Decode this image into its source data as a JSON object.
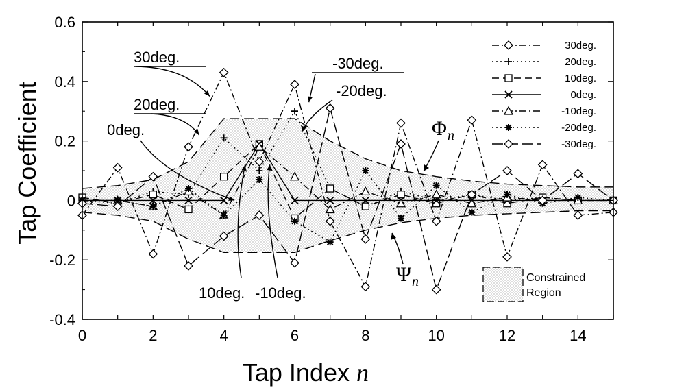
{
  "chart_data": {
    "type": "line",
    "xlabel": "Tap Index",
    "xlabel_var": "n",
    "ylabel": "Tap Coefficient",
    "xlim": [
      0,
      15
    ],
    "ylim": [
      -0.4,
      0.6
    ],
    "x_ticks": [
      0,
      2,
      4,
      6,
      8,
      10,
      12,
      14
    ],
    "y_ticks": [
      -0.4,
      -0.2,
      0,
      0.2,
      0.4,
      0.6
    ],
    "y_tick_labels": [
      "-0.4",
      "-0.2",
      "0",
      "0.2",
      "0.4",
      "0.6"
    ],
    "grid": false,
    "legend_position": "top-right",
    "x": [
      0,
      1,
      2,
      3,
      4,
      5,
      6,
      7,
      8,
      9,
      10,
      11,
      12,
      13,
      14,
      15
    ],
    "series": [
      {
        "name": "30deg.",
        "dash": "dashdot",
        "marker": "diamond",
        "values": [
          -0.05,
          0.11,
          -0.18,
          0.18,
          0.43,
          0.13,
          0.39,
          -0.07,
          -0.29,
          0.26,
          -0.07,
          0.27,
          -0.19,
          0.12,
          -0.05,
          -0.04
        ]
      },
      {
        "name": "20deg.",
        "dash": "dotted",
        "marker": "plus",
        "values": [
          0.0,
          -0.01,
          0.03,
          0.02,
          0.21,
          0.1,
          0.3,
          0.04,
          -0.02,
          0.03,
          0.0,
          0.02,
          0.0,
          0.01,
          0.0,
          0.0
        ]
      },
      {
        "name": "10deg.",
        "dash": "dashed",
        "marker": "square",
        "values": [
          0.01,
          -0.01,
          0.02,
          -0.03,
          0.08,
          0.19,
          -0.06,
          0.04,
          -0.02,
          0.02,
          -0.01,
          0.02,
          -0.01,
          0.01,
          0.0,
          0.0
        ]
      },
      {
        "name": "0deg.",
        "dash": "solid",
        "marker": "x",
        "values": [
          0,
          0,
          0,
          0,
          0,
          0.19,
          0,
          0,
          0,
          0,
          0,
          0,
          0,
          0,
          0,
          0
        ]
      },
      {
        "name": "-10deg.",
        "dash": "dashdot",
        "marker": "triangle",
        "values": [
          0.0,
          0.0,
          -0.02,
          0.03,
          -0.05,
          0.18,
          0.08,
          -0.03,
          0.03,
          -0.01,
          0.02,
          -0.01,
          0.01,
          0.0,
          0.0,
          0.0
        ]
      },
      {
        "name": "-20deg.",
        "dash": "dotted",
        "marker": "asterisk",
        "values": [
          0.0,
          0.0,
          -0.02,
          0.04,
          -0.05,
          0.07,
          -0.07,
          -0.14,
          0.1,
          -0.06,
          0.05,
          -0.04,
          0.02,
          -0.01,
          0.01,
          0.0
        ]
      },
      {
        "name": "-30deg.",
        "dash": "longdash",
        "marker": "diamond",
        "values": [
          -0.01,
          -0.02,
          0.08,
          -0.22,
          -0.12,
          -0.05,
          -0.21,
          0.31,
          -0.13,
          0.19,
          -0.3,
          0.02,
          0.1,
          0.0,
          0.09,
          0.0
        ]
      }
    ],
    "envelope": {
      "upper": [
        0.04,
        0.05,
        0.07,
        0.13,
        0.275,
        0.275,
        0.275,
        0.2,
        0.14,
        0.1,
        0.08,
        0.065,
        0.055,
        0.05,
        0.045,
        0.045
      ],
      "lower": [
        -0.04,
        -0.05,
        -0.07,
        -0.13,
        -0.175,
        -0.175,
        -0.175,
        -0.135,
        -0.1,
        -0.075,
        -0.06,
        -0.05,
        -0.045,
        -0.04,
        -0.035,
        -0.035
      ]
    },
    "annotations": [
      {
        "text": "30deg.",
        "target_x": 3.6,
        "target_y": 0.35
      },
      {
        "text": "20deg.",
        "target_x": 3.3,
        "target_y": 0.22
      },
      {
        "text": "0deg.",
        "target_x": 4.3,
        "target_y": 0.0
      },
      {
        "text": "-30deg.",
        "target_x": 6.4,
        "target_y": 0.33
      },
      {
        "text": "-20deg.",
        "target_x": 6.2,
        "target_y": 0.23
      },
      {
        "text": "10deg.",
        "target_x": 4.6,
        "target_y": 0.12
      },
      {
        "text": "-10deg.",
        "target_x": 5.3,
        "target_y": 0.12
      }
    ],
    "upper_envelope_symbol": "Φ",
    "lower_envelope_symbol": "Ψ",
    "envelope_subscript": "n",
    "region_legend": [
      "Constrained",
      "Region"
    ]
  }
}
